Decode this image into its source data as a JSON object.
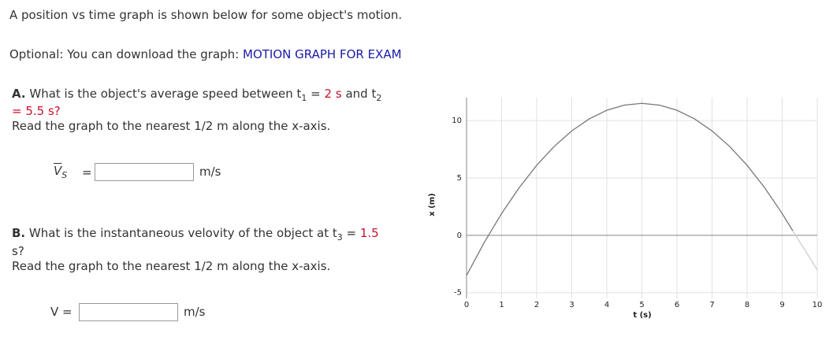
{
  "intro": "A position vs time graph is shown below for some object's motion.",
  "optional": {
    "text": "Optional: You can download the graph:",
    "link": "MOTION GRAPH FOR EXAM"
  },
  "part_a": {
    "label": "A.",
    "question": "What is the object's average speed between t",
    "sub1": "1",
    "eq": "=",
    "value1": "2 s",
    "and": "and t",
    "sub2": "2",
    "value2": "= 5.5 s?",
    "note": "Read the graph to the nearest 1/2 m along the x-axis.",
    "symbol": "V",
    "symbol_sub": "S",
    "equals": "=",
    "unit": "m/s"
  },
  "part_b": {
    "label": "B.",
    "question": "What is the instantaneous velovity of the object at t",
    "sub": "3",
    "eq": "=",
    "value": "1.5",
    "tail": "s?",
    "note": "Read the graph to the nearest 1/2 m along the x-axis.",
    "symbol": "V =",
    "unit": "m/s"
  },
  "graph": {
    "xlabel": "t (s)",
    "ylabel": "x (m)",
    "xlim": [
      0,
      10
    ],
    "ylim": [
      -5.5,
      12
    ],
    "xticks": [
      0,
      1,
      2,
      3,
      4,
      5,
      6,
      7,
      8,
      9,
      10
    ],
    "yticks": [
      -5,
      0,
      5,
      10
    ],
    "curve": {
      "color": "#777777",
      "t": [
        0,
        0.5,
        1,
        1.5,
        2,
        2.5,
        3,
        3.5,
        4,
        4.5,
        5,
        5.5,
        6,
        6.5,
        7,
        7.5,
        8,
        8.5,
        9,
        9.3
      ],
      "x": [
        -3.5,
        -0.65,
        1.9,
        4.15,
        6.1,
        7.75,
        9.1,
        10.15,
        10.9,
        11.35,
        11.5,
        11.35,
        10.9,
        10.15,
        9.1,
        7.75,
        6.1,
        4.15,
        1.9,
        0.41
      ]
    },
    "extension": {
      "color": "#cccccc",
      "t": [
        9.3,
        10
      ],
      "x": [
        0.41,
        -3
      ]
    }
  }
}
